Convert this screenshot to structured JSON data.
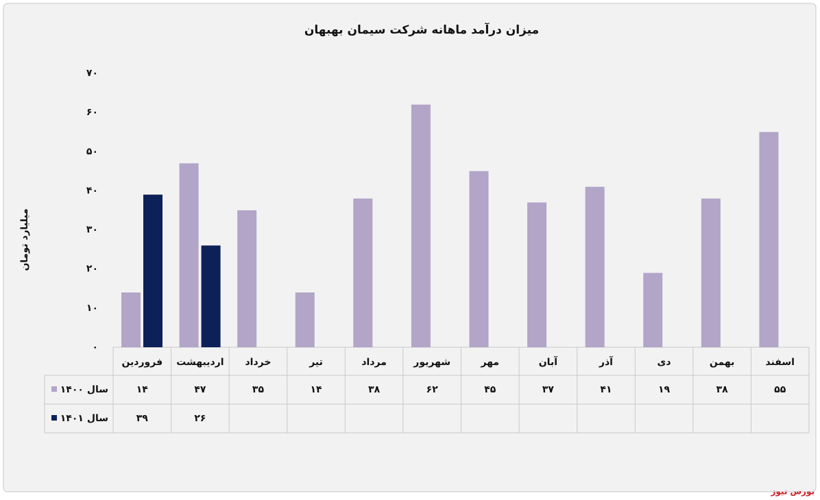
{
  "chart_data": {
    "type": "bar",
    "title": "میزان درآمد ماهانه شرکت سیمان بهبهان",
    "y_label": "میلیارد تومان",
    "categories": [
      "فروردین",
      "اردیبهشت",
      "خرداد",
      "تیر",
      "مرداد",
      "شهریور",
      "مهر",
      "آبان",
      "آذر",
      "دی",
      "بهمن",
      "اسفند"
    ],
    "series": [
      {
        "name": "سال ۱۴۰۰",
        "color": "#b2a5c8",
        "values": [
          14,
          47,
          35,
          14,
          38,
          62,
          45,
          37,
          41,
          19,
          38,
          55
        ],
        "value_labels": [
          "۱۴",
          "۴۷",
          "۳۵",
          "۱۴",
          "۳۸",
          "۶۲",
          "۴۵",
          "۳۷",
          "۴۱",
          "۱۹",
          "۳۸",
          "۵۵"
        ]
      },
      {
        "name": "سال ۱۴۰۱",
        "color": "#0d2159",
        "values": [
          39,
          26,
          null,
          null,
          null,
          null,
          null,
          null,
          null,
          null,
          null,
          null
        ],
        "value_labels": [
          "۳۹",
          "۲۶",
          null,
          null,
          null,
          null,
          null,
          null,
          null,
          null,
          null,
          null
        ]
      }
    ],
    "ylim": [
      0,
      70
    ],
    "yticks": [
      {
        "value": 0,
        "label": "۰"
      },
      {
        "value": 10,
        "label": "۱۰"
      },
      {
        "value": 20,
        "label": "۲۰"
      },
      {
        "value": 30,
        "label": "۳۰"
      },
      {
        "value": 40,
        "label": "۴۰"
      },
      {
        "value": 50,
        "label": "۵۰"
      },
      {
        "value": 60,
        "label": "۶۰"
      },
      {
        "value": 70,
        "label": "۷۰"
      }
    ],
    "grid": false,
    "data_table": true,
    "watermark": "بورس نیوز"
  }
}
